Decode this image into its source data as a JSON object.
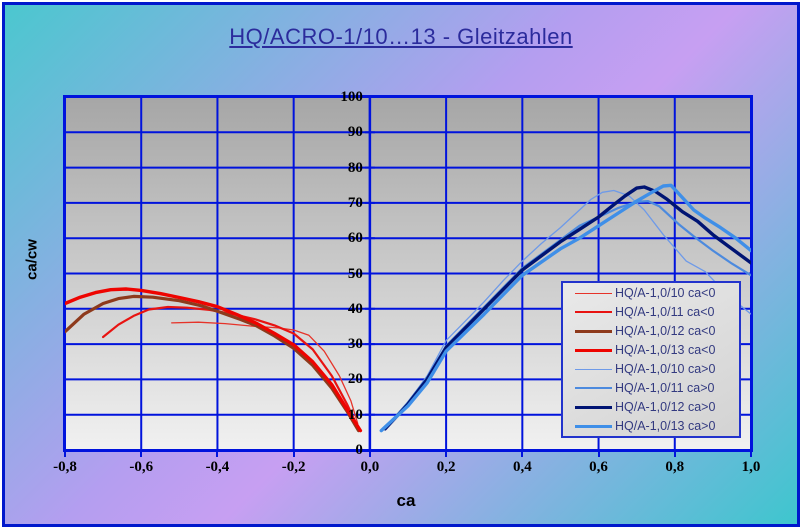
{
  "title": "HQ/ACRO-1/10…13 - Gleitzahlen",
  "colors": {
    "frame_border": "#0018cc",
    "background_gradient": [
      "#4bc7cf",
      "#b49ef0",
      "#3ec6ce"
    ],
    "grid": "#0013dd",
    "plot_bg_top": "#a6a6a6",
    "plot_bg_bottom": "#f1f1f1",
    "title_text": "#2b2b9c",
    "legend_border": "#2233cc",
    "legend_text": "#333a80",
    "tick_text": "#000000"
  },
  "chart_data": {
    "type": "line",
    "title": "HQ/ACRO-1/10…13 - Gleitzahlen",
    "xlabel": "ca",
    "ylabel": "ca/cw",
    "xlim": [
      -0.8,
      1.0
    ],
    "ylim": [
      0,
      100
    ],
    "grid": "on",
    "legend_position": "inside lower right",
    "x_tick_values": [
      -0.8,
      -0.6,
      -0.4,
      -0.2,
      0.0,
      0.2,
      0.4,
      0.6,
      0.8,
      1.0
    ],
    "x_tick_labels": [
      "-0,8",
      "-0,6",
      "-0,4",
      "-0,2",
      "0,0",
      "0,2",
      "0,4",
      "0,6",
      "0,8",
      "1,0"
    ],
    "y_tick_values": [
      0,
      10,
      20,
      30,
      40,
      50,
      60,
      70,
      80,
      90,
      100
    ],
    "y_tick_labels": [
      "0",
      "10",
      "20",
      "30",
      "40",
      "50",
      "60",
      "70",
      "80",
      "90",
      "100"
    ],
    "y_axis_cross_x": 0.0,
    "series": [
      {
        "name": "HQ/A-1,0/10 ca<0",
        "color": "#e63329",
        "width": 1.3,
        "points": [
          [
            -0.52,
            36
          ],
          [
            -0.45,
            36.2
          ],
          [
            -0.38,
            35.8
          ],
          [
            -0.3,
            35
          ],
          [
            -0.24,
            34.6
          ],
          [
            -0.2,
            34
          ],
          [
            -0.16,
            32.5
          ],
          [
            -0.12,
            28
          ],
          [
            -0.08,
            21
          ],
          [
            -0.05,
            14
          ],
          [
            -0.032,
            7.5
          ]
        ]
      },
      {
        "name": "HQ/A-1,0/11 ca<0",
        "color": "#e81311",
        "width": 2.2,
        "points": [
          [
            -0.7,
            32
          ],
          [
            -0.66,
            35.5
          ],
          [
            -0.62,
            38
          ],
          [
            -0.58,
            39.8
          ],
          [
            -0.53,
            40.5
          ],
          [
            -0.48,
            40.3
          ],
          [
            -0.42,
            39.7
          ],
          [
            -0.36,
            38.5
          ],
          [
            -0.3,
            37
          ],
          [
            -0.25,
            35.3
          ],
          [
            -0.2,
            33
          ],
          [
            -0.15,
            28.5
          ],
          [
            -0.1,
            21
          ],
          [
            -0.06,
            13
          ],
          [
            -0.03,
            6
          ]
        ]
      },
      {
        "name": "HQ/A-1,0/12 ca<0",
        "color": "#8e3a1c",
        "width": 3.2,
        "points": [
          [
            -0.8,
            33.5
          ],
          [
            -0.75,
            38.5
          ],
          [
            -0.7,
            41.5
          ],
          [
            -0.66,
            42.9
          ],
          [
            -0.62,
            43.5
          ],
          [
            -0.57,
            43.3
          ],
          [
            -0.5,
            42.3
          ],
          [
            -0.44,
            40.8
          ],
          [
            -0.4,
            39.3
          ],
          [
            -0.34,
            37
          ],
          [
            -0.3,
            35.3
          ],
          [
            -0.25,
            32.3
          ],
          [
            -0.2,
            28.8
          ],
          [
            -0.15,
            24
          ],
          [
            -0.1,
            17.5
          ],
          [
            -0.06,
            11
          ],
          [
            -0.03,
            5.5
          ]
        ]
      },
      {
        "name": "HQ/A-1,0/13 ca<0",
        "color": "#ee0400",
        "width": 3.4,
        "points": [
          [
            -0.8,
            41.5
          ],
          [
            -0.76,
            43.3
          ],
          [
            -0.72,
            44.6
          ],
          [
            -0.68,
            45.4
          ],
          [
            -0.64,
            45.6
          ],
          [
            -0.6,
            45.2
          ],
          [
            -0.55,
            44.3
          ],
          [
            -0.5,
            43.2
          ],
          [
            -0.45,
            42
          ],
          [
            -0.4,
            40.6
          ],
          [
            -0.35,
            38.4
          ],
          [
            -0.3,
            36
          ],
          [
            -0.25,
            33
          ],
          [
            -0.2,
            29.8
          ],
          [
            -0.15,
            25
          ],
          [
            -0.1,
            18.5
          ],
          [
            -0.06,
            11.5
          ],
          [
            -0.025,
            5.5
          ]
        ]
      },
      {
        "name": "HQ/A-1,0/10 ca>0",
        "color": "#6e9ae8",
        "width": 1.3,
        "points": [
          [
            0.05,
            7
          ],
          [
            0.1,
            13.5
          ],
          [
            0.15,
            21
          ],
          [
            0.2,
            31
          ],
          [
            0.25,
            36.5
          ],
          [
            0.3,
            42
          ],
          [
            0.35,
            48
          ],
          [
            0.4,
            53.5
          ],
          [
            0.45,
            58.5
          ],
          [
            0.5,
            63
          ],
          [
            0.55,
            68
          ],
          [
            0.58,
            71
          ],
          [
            0.61,
            73
          ],
          [
            0.64,
            73.5
          ],
          [
            0.68,
            72
          ],
          [
            0.72,
            68
          ],
          [
            0.77,
            61
          ],
          [
            0.83,
            53.5
          ],
          [
            0.88,
            50.5
          ],
          [
            0.92,
            46
          ],
          [
            0.96,
            42
          ],
          [
            1.0,
            38.5
          ]
        ]
      },
      {
        "name": "HQ/A-1,0/11 ca>0",
        "color": "#4c8ade",
        "width": 2.2,
        "points": [
          [
            0.04,
            6
          ],
          [
            0.1,
            13.5
          ],
          [
            0.15,
            20.5
          ],
          [
            0.2,
            29.5
          ],
          [
            0.3,
            40.5
          ],
          [
            0.4,
            51.5
          ],
          [
            0.5,
            59.5
          ],
          [
            0.55,
            63.5
          ],
          [
            0.6,
            66
          ],
          [
            0.65,
            68.5
          ],
          [
            0.7,
            70.3
          ],
          [
            0.73,
            70.5
          ],
          [
            0.76,
            69
          ],
          [
            0.81,
            64
          ],
          [
            0.85,
            60.5
          ],
          [
            0.9,
            56.5
          ],
          [
            0.95,
            52.8
          ],
          [
            1.0,
            49.5
          ]
        ]
      },
      {
        "name": "HQ/A-1,0/12 ca>0",
        "color": "#001473",
        "width": 3.4,
        "points": [
          [
            0.04,
            6
          ],
          [
            0.1,
            13
          ],
          [
            0.15,
            20
          ],
          [
            0.2,
            29
          ],
          [
            0.3,
            40
          ],
          [
            0.4,
            51
          ],
          [
            0.5,
            59
          ],
          [
            0.55,
            62.5
          ],
          [
            0.6,
            66
          ],
          [
            0.64,
            69.5
          ],
          [
            0.67,
            72
          ],
          [
            0.7,
            74.2
          ],
          [
            0.72,
            74.5
          ],
          [
            0.75,
            73.2
          ],
          [
            0.78,
            71
          ],
          [
            0.82,
            67.5
          ],
          [
            0.86,
            64.8
          ],
          [
            0.9,
            61
          ],
          [
            0.94,
            57.8
          ],
          [
            1.0,
            53
          ]
        ]
      },
      {
        "name": "HQ/A-1,0/13 ca>0",
        "color": "#3f8fe8",
        "width": 3.4,
        "points": [
          [
            0.03,
            5.5
          ],
          [
            0.1,
            12.5
          ],
          [
            0.15,
            19
          ],
          [
            0.2,
            28
          ],
          [
            0.3,
            38.5
          ],
          [
            0.4,
            49.5
          ],
          [
            0.5,
            57
          ],
          [
            0.55,
            60
          ],
          [
            0.6,
            63.5
          ],
          [
            0.65,
            67
          ],
          [
            0.7,
            70.5
          ],
          [
            0.74,
            73
          ],
          [
            0.77,
            74.8
          ],
          [
            0.79,
            75
          ],
          [
            0.82,
            71.5
          ],
          [
            0.85,
            68
          ],
          [
            0.88,
            65.7
          ],
          [
            0.92,
            63
          ],
          [
            0.96,
            60
          ],
          [
            1.0,
            56.5
          ]
        ]
      }
    ]
  },
  "legend": {
    "items": [
      {
        "label": "HQ/A-1,0/10 ca<0"
      },
      {
        "label": "HQ/A-1,0/11 ca<0"
      },
      {
        "label": "HQ/A-1,0/12 ca<0"
      },
      {
        "label": "HQ/A-1,0/13 ca<0"
      },
      {
        "label": "HQ/A-1,0/10 ca>0"
      },
      {
        "label": "HQ/A-1,0/11 ca>0"
      },
      {
        "label": "HQ/A-1,0/12 ca>0"
      },
      {
        "label": "HQ/A-1,0/13 ca>0"
      }
    ]
  }
}
